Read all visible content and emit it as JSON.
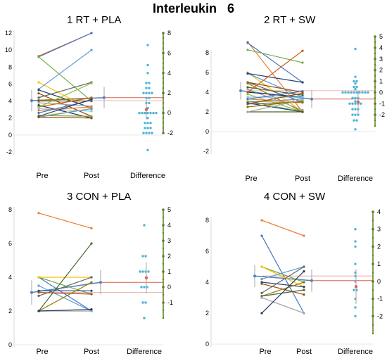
{
  "figure_title": "Interleukin   6",
  "colors": {
    "diff_axis": "#5b7f1f",
    "diff_dots": "#4fb3d9",
    "mean_red": "#d9634f",
    "mean_blue": "#4f81bd",
    "pair_palette": [
      "#ed7d31",
      "#4472c4",
      "#70ad47",
      "#ffc000",
      "#5b9bd5",
      "#264478",
      "#9e480e",
      "#636363",
      "#997300",
      "#43682b",
      "#a5a5a5",
      "#1f3864",
      "#c55a11",
      "#8fbc3f",
      "#7cc5e8"
    ]
  },
  "chart_data": [
    {
      "type": "scatter",
      "title": "1 RT + PLA",
      "x_categories": [
        "Pre",
        "Post",
        "Difference"
      ],
      "ylim": [
        -2,
        12
      ],
      "y_ticks": [
        "-2",
        "0",
        "2",
        "4",
        "6",
        "8",
        "10",
        "12"
      ],
      "diff_ylim": [
        -2,
        8
      ],
      "diff_ticks": [
        "-2",
        "0",
        "2",
        "4",
        "6",
        "8"
      ],
      "pre_mean": 4.05,
      "post_mean": 4.4,
      "diff_mean": 0.35,
      "pairs": [
        [
          9.3,
          12
        ],
        [
          9.2,
          12
        ],
        [
          9.2,
          4
        ],
        [
          6.2,
          3
        ],
        [
          5.4,
          10
        ],
        [
          5.3,
          3.2
        ],
        [
          4.9,
          2.2
        ],
        [
          4.4,
          6.2
        ],
        [
          4.1,
          4.3
        ],
        [
          4,
          4
        ],
        [
          3.8,
          3.4
        ],
        [
          3.5,
          2
        ],
        [
          3.3,
          4.4
        ],
        [
          3.3,
          6.1
        ],
        [
          3.1,
          2.8
        ],
        [
          2.9,
          3.3
        ],
        [
          2.6,
          4.1
        ],
        [
          2.3,
          2.2
        ],
        [
          2.2,
          3.1
        ],
        [
          2.1,
          3.1
        ],
        [
          2.2,
          4.2
        ],
        [
          2.1,
          2
        ]
      ],
      "diffs": [
        6.8,
        4.8,
        4,
        3,
        3,
        2.5,
        2.5,
        2,
        2,
        2,
        2,
        1.5,
        1.5,
        1,
        1,
        0.5,
        0,
        0,
        0,
        0,
        0,
        0,
        0,
        -0.5,
        -1,
        -1,
        -1,
        -1.5,
        -1.5,
        -1.5,
        -2,
        -2,
        -2,
        -2,
        -3.7
      ]
    },
    {
      "type": "scatter",
      "title": "2 RT + SW",
      "x_categories": [
        "Pre",
        "Post",
        "Difference"
      ],
      "ylim": [
        -2,
        8
      ],
      "y_ticks": [
        "-2",
        "0",
        "2",
        "4",
        "6",
        "8"
      ],
      "diff_ylim": [
        -3,
        5
      ],
      "diff_ticks": [
        "-2",
        "-1",
        "0",
        "1",
        "2",
        "3",
        "4",
        "5"
      ],
      "pre_mean": 4.15,
      "post_mean": 3.3,
      "diff_mean": -0.85,
      "pairs": [
        [
          9.1,
          2
        ],
        [
          9,
          5
        ],
        [
          8.3,
          7
        ],
        [
          6,
          2
        ],
        [
          5.9,
          3.5
        ],
        [
          5.9,
          5
        ],
        [
          5,
          4
        ],
        [
          5,
          3
        ],
        [
          4.9,
          2
        ],
        [
          4.5,
          3.7
        ],
        [
          4.3,
          2.2
        ],
        [
          4,
          3.5
        ],
        [
          4,
          8.2
        ],
        [
          3.8,
          2
        ],
        [
          3.5,
          3.5
        ],
        [
          3.3,
          3
        ],
        [
          3.3,
          4.1
        ],
        [
          3.1,
          2
        ],
        [
          3.1,
          2.9
        ],
        [
          3,
          3.3
        ],
        [
          2.9,
          2
        ],
        [
          2.8,
          3.9
        ],
        [
          2.8,
          3
        ],
        [
          2.5,
          3.1
        ],
        [
          2,
          2
        ],
        [
          2,
          3.2
        ]
      ],
      "diffs": [
        3.9,
        1.4,
        1,
        1,
        0.8,
        0.5,
        0.5,
        0.3,
        0,
        0,
        0,
        0,
        0,
        0,
        0,
        0,
        0,
        0,
        -0.5,
        -0.5,
        -0.5,
        -0.8,
        -1,
        -1,
        -1,
        -1,
        -1,
        -1.5,
        -1.5,
        -1.5,
        -2,
        -2,
        -2,
        -2.5,
        -2.5,
        -3.3
      ]
    },
    {
      "type": "scatter",
      "title": "3 CON + PLA",
      "x_categories": [
        "Pre",
        "Post",
        "Difference"
      ],
      "ylim": [
        0,
        8
      ],
      "y_ticks": [
        "0",
        "2",
        "4",
        "6",
        "8"
      ],
      "diff_ylim": [
        -2,
        5
      ],
      "diff_ticks": [
        "-1",
        "0",
        "1",
        "2",
        "3",
        "4",
        "5"
      ],
      "pre_mean": 3.1,
      "post_mean": 3.7,
      "diff_mean": 0.6,
      "pairs": [
        [
          7.8,
          6.9
        ],
        [
          4,
          2
        ],
        [
          4,
          3
        ],
        [
          4,
          4
        ],
        [
          3.5,
          2
        ],
        [
          3.2,
          3.2
        ],
        [
          3.1,
          3
        ],
        [
          2.9,
          4
        ],
        [
          2,
          3.7
        ],
        [
          2,
          6
        ],
        [
          2,
          2
        ],
        [
          2,
          2.1
        ]
      ],
      "diffs": [
        4,
        2,
        2,
        1,
        1,
        1,
        1,
        0,
        0,
        0,
        -1,
        -1,
        -2
      ]
    },
    {
      "type": "scatter",
      "title": "4 CON + SW",
      "x_categories": [
        "Pre",
        "Post",
        "Difference"
      ],
      "ylim": [
        0,
        8
      ],
      "y_ticks": [
        "0",
        "2",
        "4",
        "6",
        "8"
      ],
      "diff_ylim": [
        -3,
        4
      ],
      "diff_ticks": [
        "-2",
        "-1",
        "0",
        "1",
        "2",
        "3",
        "4"
      ],
      "pre_mean": 4.4,
      "post_mean": 4.1,
      "diff_mean": -0.3,
      "pairs": [
        [
          8,
          7
        ],
        [
          7,
          2
        ],
        [
          5,
          4
        ],
        [
          5,
          3.7
        ],
        [
          4.2,
          5
        ],
        [
          4,
          3.7
        ],
        [
          3.9,
          3.2
        ],
        [
          3.3,
          5
        ],
        [
          3.1,
          4
        ],
        [
          3.1,
          3.5
        ],
        [
          3,
          2
        ],
        [
          2,
          4.7
        ]
      ],
      "diffs": [
        3,
        2.3,
        2,
        1,
        0.5,
        0.3,
        0,
        -0.5,
        -0.5,
        -1,
        -1.5,
        -2
      ]
    }
  ]
}
